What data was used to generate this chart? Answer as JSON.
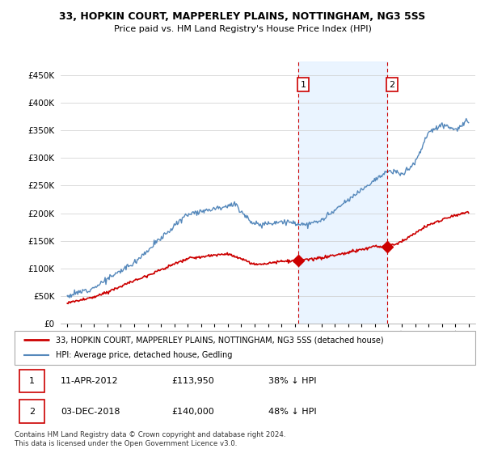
{
  "title": "33, HOPKIN COURT, MAPPERLEY PLAINS, NOTTINGHAM, NG3 5SS",
  "subtitle": "Price paid vs. HM Land Registry's House Price Index (HPI)",
  "legend_line1": "33, HOPKIN COURT, MAPPERLEY PLAINS, NOTTINGHAM, NG3 5SS (detached house)",
  "legend_line2": "HPI: Average price, detached house, Gedling",
  "footer": "Contains HM Land Registry data © Crown copyright and database right 2024.\nThis data is licensed under the Open Government Licence v3.0.",
  "annotation1": {
    "label": "1",
    "date": "11-APR-2012",
    "price": "£113,950",
    "note": "38% ↓ HPI"
  },
  "annotation2": {
    "label": "2",
    "date": "03-DEC-2018",
    "price": "£140,000",
    "note": "48% ↓ HPI"
  },
  "vline1_x": 2012.27,
  "vline2_x": 2018.92,
  "marker1_price_y": 113950,
  "marker2_price_y": 140000,
  "ylim": [
    0,
    475000
  ],
  "xlim": [
    1994.5,
    2025.5
  ],
  "hpi_color": "#5588bb",
  "price_color": "#cc0000",
  "vline_color": "#cc0000",
  "bg_shade_color": "#ddeeff",
  "yticks": [
    0,
    50000,
    100000,
    150000,
    200000,
    250000,
    300000,
    350000,
    400000,
    450000
  ],
  "xticks": [
    1995,
    1996,
    1997,
    1998,
    1999,
    2000,
    2001,
    2002,
    2003,
    2004,
    2005,
    2006,
    2007,
    2008,
    2009,
    2010,
    2011,
    2012,
    2013,
    2014,
    2015,
    2016,
    2017,
    2018,
    2019,
    2020,
    2021,
    2022,
    2023,
    2024,
    2025
  ]
}
